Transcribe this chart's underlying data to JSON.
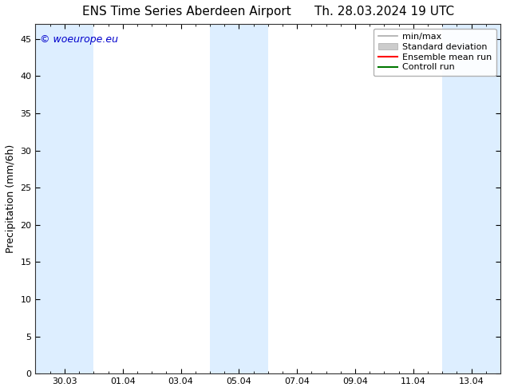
{
  "title": "ENS Time Series Aberdeen Airport      Th. 28.03.2024 19 UTC",
  "ylabel": "Precipitation (mm/6h)",
  "ylim": [
    0,
    47
  ],
  "yticks": [
    0,
    5,
    10,
    15,
    20,
    25,
    30,
    35,
    40,
    45
  ],
  "xlim": [
    0,
    16
  ],
  "xtick_labels": [
    "30.03",
    "01.04",
    "03.04",
    "05.04",
    "07.04",
    "09.04",
    "11.04",
    "13.04"
  ],
  "xtick_positions": [
    1.0,
    3.0,
    5.0,
    7.0,
    9.0,
    11.0,
    13.0,
    15.0
  ],
  "shaded_bands": [
    {
      "x_start": 0.0,
      "x_end": 2.0
    },
    {
      "x_start": 6.0,
      "x_end": 8.0
    },
    {
      "x_start": 14.0,
      "x_end": 16.0
    }
  ],
  "band_color": "#ddeeff",
  "background_color": "#ffffff",
  "plot_bg_color": "#ffffff",
  "watermark_text": "© woeurope.eu",
  "watermark_color": "#0000cc",
  "watermark_fontsize": 9,
  "legend_items": [
    {
      "label": "min/max",
      "color": "#aaaaaa",
      "type": "errorbar"
    },
    {
      "label": "Standard deviation",
      "color": "#cccccc",
      "type": "fill"
    },
    {
      "label": "Ensemble mean run",
      "color": "#ff0000",
      "type": "line"
    },
    {
      "label": "Controll run",
      "color": "#007700",
      "type": "line"
    }
  ],
  "title_fontsize": 11,
  "axis_label_fontsize": 9,
  "tick_fontsize": 8,
  "legend_fontsize": 8
}
